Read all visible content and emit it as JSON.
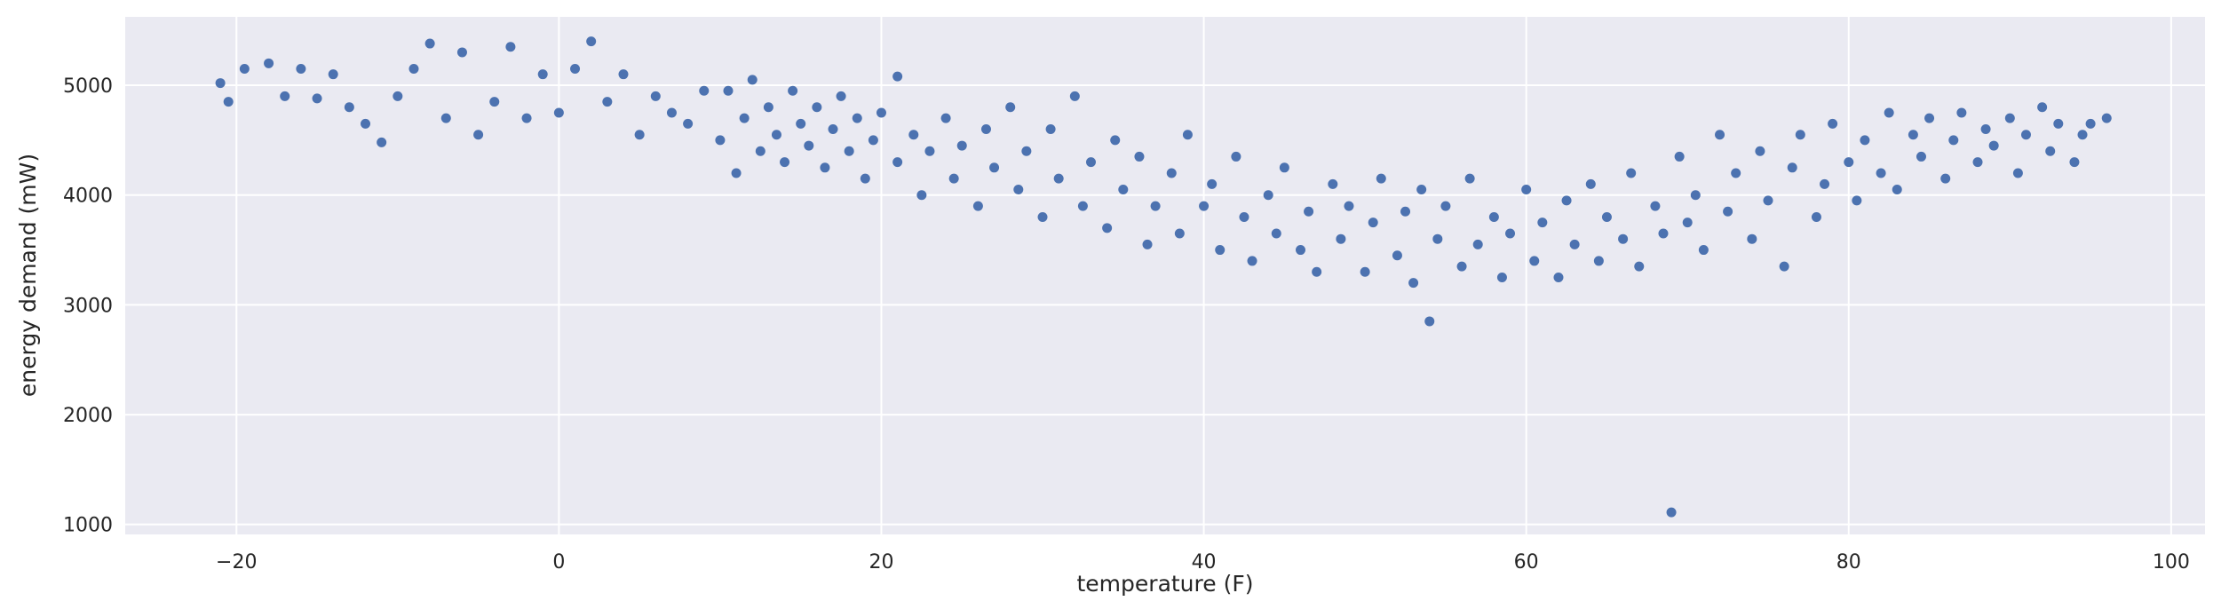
{
  "chart_data": {
    "type": "scatter",
    "xlabel": "temperature (F)",
    "ylabel": "energy demand (mW)",
    "color": "#4c72b0",
    "grid": true,
    "xlim": [
      -26.9,
      102.1
    ],
    "ylim": [
      909,
      5623
    ],
    "xticks": [
      {
        "value": -20,
        "label": "−20"
      },
      0,
      20,
      40,
      60,
      80,
      100
    ],
    "yticks": [
      1000,
      2000,
      3000,
      4000,
      5000
    ],
    "x": [
      -21,
      -20.5,
      -19.5,
      -18,
      -17,
      -16,
      -15,
      -14,
      -13,
      -12,
      -11,
      -10,
      -9,
      -8,
      -7,
      -6,
      -5,
      -4,
      -3,
      -2,
      -1,
      0,
      1,
      2,
      3,
      4,
      5,
      6,
      7,
      8,
      9,
      10,
      10.5,
      11,
      11.5,
      12,
      12.5,
      13,
      13.5,
      14,
      14.5,
      15,
      15.5,
      16,
      16.5,
      17,
      17.5,
      18,
      18.5,
      19,
      19.5,
      20,
      21,
      21,
      22,
      22.5,
      23,
      24,
      24.5,
      25,
      26,
      26.5,
      27,
      28,
      28.5,
      29,
      30,
      30.5,
      31,
      32,
      32.5,
      33,
      34,
      34.5,
      35,
      36,
      36.5,
      37,
      38,
      38.5,
      39,
      40,
      40.5,
      41,
      42,
      42.5,
      43,
      44,
      44.5,
      45,
      46,
      46.5,
      47,
      48,
      48.5,
      49,
      50,
      50.5,
      51,
      52,
      52.5,
      53,
      53.5,
      54,
      54.5,
      55,
      56,
      56.5,
      57,
      58,
      58.5,
      59,
      60,
      60.5,
      61,
      62,
      62.5,
      63,
      64,
      64.5,
      65,
      66,
      66.5,
      67,
      68,
      68.5,
      69,
      69.5,
      70,
      70.5,
      71,
      72,
      72.5,
      73,
      74,
      74.5,
      75,
      76,
      76.5,
      77,
      78,
      78.5,
      79,
      80,
      80.5,
      81,
      82,
      82.5,
      83,
      84,
      84.5,
      85,
      86,
      86.5,
      87,
      88,
      88.5,
      89,
      90,
      90.5,
      91,
      92,
      92.5,
      93,
      94,
      94.5,
      95,
      96
    ],
    "y": [
      5020,
      4850,
      5150,
      5200,
      4900,
      5150,
      4880,
      5100,
      4800,
      4650,
      4480,
      4900,
      5150,
      5380,
      4700,
      5300,
      4550,
      4850,
      5350,
      4700,
      5100,
      4750,
      5150,
      5400,
      4850,
      5100,
      4550,
      4900,
      4750,
      4650,
      4950,
      4500,
      4950,
      4200,
      4700,
      5050,
      4400,
      4800,
      4550,
      4300,
      4950,
      4650,
      4450,
      4800,
      4250,
      4600,
      4900,
      4400,
      4700,
      4150,
      4500,
      4750,
      4300,
      5080,
      4550,
      4000,
      4400,
      4700,
      4150,
      4450,
      3900,
      4600,
      4250,
      4800,
      4050,
      4400,
      3800,
      4600,
      4150,
      4900,
      3900,
      4300,
      3700,
      4500,
      4050,
      4350,
      3550,
      3900,
      4200,
      3650,
      4550,
      3900,
      4100,
      3500,
      4350,
      3800,
      3400,
      4000,
      3650,
      4250,
      3500,
      3850,
      3300,
      4100,
      3600,
      3900,
      3300,
      3750,
      4150,
      3450,
      3850,
      3200,
      4050,
      2850,
      3600,
      3900,
      3350,
      4150,
      3550,
      3800,
      3250,
      3650,
      4050,
      3400,
      3750,
      3250,
      3950,
      3550,
      4100,
      3400,
      3800,
      3600,
      4200,
      3350,
      3900,
      3650,
      1110,
      4350,
      3750,
      4000,
      3500,
      4550,
      3850,
      4200,
      3600,
      4400,
      3950,
      3350,
      4250,
      4550,
      3800,
      4100,
      4650,
      4300,
      3950,
      4500,
      4200,
      4750,
      4050,
      4550,
      4350,
      4700,
      4150,
      4500,
      4750,
      4300,
      4600,
      4450,
      4700,
      4200,
      4550,
      4800,
      4400,
      4650,
      4300,
      4550,
      4650,
      4700
    ]
  }
}
